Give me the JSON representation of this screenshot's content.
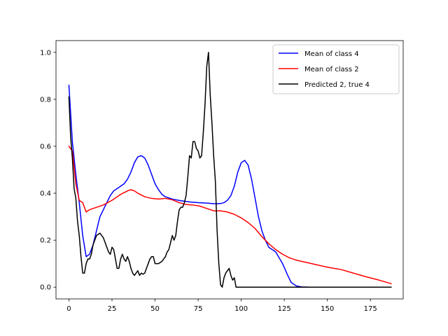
{
  "chart_data": {
    "type": "line",
    "title": "",
    "xlabel": "",
    "ylabel": "",
    "xlim": [
      -7.5,
      194
    ],
    "ylim": [
      -0.05,
      1.05
    ],
    "xticks": [
      0,
      25,
      50,
      75,
      100,
      125,
      150,
      175
    ],
    "yticks": [
      0.0,
      0.2,
      0.4,
      0.6,
      0.8,
      1.0
    ],
    "xtick_labels": [
      "0",
      "25",
      "50",
      "75",
      "100",
      "125",
      "150",
      "175"
    ],
    "ytick_labels": [
      "0.0",
      "0.2",
      "0.4",
      "0.6",
      "0.8",
      "1.0"
    ],
    "grid": false,
    "legend_position": "upper right",
    "series": [
      {
        "name": "Mean of class 4",
        "color": "#0000ff",
        "points": [
          [
            0,
            0.86
          ],
          [
            2,
            0.62
          ],
          [
            4,
            0.48
          ],
          [
            6,
            0.36
          ],
          [
            8,
            0.22
          ],
          [
            10,
            0.13
          ],
          [
            12,
            0.14
          ],
          [
            14,
            0.18
          ],
          [
            16,
            0.24
          ],
          [
            18,
            0.3
          ],
          [
            20,
            0.33
          ],
          [
            22,
            0.36
          ],
          [
            24,
            0.39
          ],
          [
            26,
            0.41
          ],
          [
            28,
            0.42
          ],
          [
            30,
            0.43
          ],
          [
            32,
            0.44
          ],
          [
            34,
            0.46
          ],
          [
            36,
            0.49
          ],
          [
            38,
            0.53
          ],
          [
            40,
            0.555
          ],
          [
            42,
            0.56
          ],
          [
            44,
            0.55
          ],
          [
            46,
            0.52
          ],
          [
            48,
            0.48
          ],
          [
            50,
            0.44
          ],
          [
            52,
            0.415
          ],
          [
            54,
            0.395
          ],
          [
            56,
            0.385
          ],
          [
            58,
            0.38
          ],
          [
            60,
            0.375
          ],
          [
            65,
            0.368
          ],
          [
            70,
            0.363
          ],
          [
            75,
            0.36
          ],
          [
            80,
            0.358
          ],
          [
            85,
            0.355
          ],
          [
            88,
            0.356
          ],
          [
            90,
            0.36
          ],
          [
            92,
            0.37
          ],
          [
            94,
            0.39
          ],
          [
            96,
            0.43
          ],
          [
            98,
            0.49
          ],
          [
            100,
            0.53
          ],
          [
            102,
            0.54
          ],
          [
            104,
            0.52
          ],
          [
            106,
            0.46
          ],
          [
            108,
            0.38
          ],
          [
            110,
            0.3
          ],
          [
            112,
            0.24
          ],
          [
            114,
            0.2
          ],
          [
            116,
            0.17
          ],
          [
            120,
            0.15
          ],
          [
            124,
            0.1
          ],
          [
            127,
            0.05
          ],
          [
            129,
            0.02
          ],
          [
            132,
            0.005
          ],
          [
            135,
            0.001
          ],
          [
            140,
            0.0
          ],
          [
            187,
            0.0
          ]
        ]
      },
      {
        "name": "Mean of class 2",
        "color": "#ff0000",
        "points": [
          [
            0,
            0.6
          ],
          [
            2,
            0.58
          ],
          [
            4,
            0.44
          ],
          [
            6,
            0.37
          ],
          [
            8,
            0.36
          ],
          [
            10,
            0.32
          ],
          [
            12,
            0.33
          ],
          [
            14,
            0.335
          ],
          [
            16,
            0.34
          ],
          [
            20,
            0.35
          ],
          [
            25,
            0.37
          ],
          [
            30,
            0.395
          ],
          [
            34,
            0.41
          ],
          [
            36,
            0.415
          ],
          [
            38,
            0.41
          ],
          [
            40,
            0.4
          ],
          [
            44,
            0.385
          ],
          [
            48,
            0.378
          ],
          [
            52,
            0.375
          ],
          [
            56,
            0.378
          ],
          [
            60,
            0.372
          ],
          [
            64,
            0.36
          ],
          [
            68,
            0.352
          ],
          [
            72,
            0.35
          ],
          [
            76,
            0.345
          ],
          [
            80,
            0.335
          ],
          [
            84,
            0.325
          ],
          [
            88,
            0.325
          ],
          [
            92,
            0.32
          ],
          [
            96,
            0.31
          ],
          [
            100,
            0.295
          ],
          [
            104,
            0.275
          ],
          [
            108,
            0.25
          ],
          [
            112,
            0.215
          ],
          [
            116,
            0.185
          ],
          [
            120,
            0.16
          ],
          [
            124,
            0.14
          ],
          [
            128,
            0.125
          ],
          [
            132,
            0.115
          ],
          [
            138,
            0.105
          ],
          [
            144,
            0.095
          ],
          [
            150,
            0.085
          ],
          [
            158,
            0.075
          ],
          [
            165,
            0.06
          ],
          [
            172,
            0.045
          ],
          [
            180,
            0.03
          ],
          [
            187,
            0.015
          ]
        ]
      },
      {
        "name": "Predicted 2, true 4",
        "color": "#000000",
        "points": [
          [
            0,
            0.81
          ],
          [
            1,
            0.64
          ],
          [
            2,
            0.55
          ],
          [
            3,
            0.42
          ],
          [
            4,
            0.38
          ],
          [
            5,
            0.28
          ],
          [
            6,
            0.22
          ],
          [
            7,
            0.13
          ],
          [
            8,
            0.06
          ],
          [
            9,
            0.06
          ],
          [
            10,
            0.1
          ],
          [
            11,
            0.12
          ],
          [
            12,
            0.12
          ],
          [
            13,
            0.14
          ],
          [
            14,
            0.18
          ],
          [
            15,
            0.2
          ],
          [
            16,
            0.22
          ],
          [
            17,
            0.225
          ],
          [
            18,
            0.23
          ],
          [
            19,
            0.22
          ],
          [
            20,
            0.21
          ],
          [
            21,
            0.19
          ],
          [
            22,
            0.17
          ],
          [
            23,
            0.15
          ],
          [
            24,
            0.14
          ],
          [
            25,
            0.17
          ],
          [
            26,
            0.16
          ],
          [
            27,
            0.12
          ],
          [
            28,
            0.08
          ],
          [
            29,
            0.08
          ],
          [
            30,
            0.12
          ],
          [
            31,
            0.14
          ],
          [
            32,
            0.12
          ],
          [
            33,
            0.11
          ],
          [
            34,
            0.13
          ],
          [
            35,
            0.11
          ],
          [
            36,
            0.08
          ],
          [
            37,
            0.06
          ],
          [
            38,
            0.05
          ],
          [
            39,
            0.06
          ],
          [
            40,
            0.07
          ],
          [
            41,
            0.05
          ],
          [
            42,
            0.06
          ],
          [
            43,
            0.055
          ],
          [
            44,
            0.06
          ],
          [
            45,
            0.08
          ],
          [
            46,
            0.1
          ],
          [
            47,
            0.12
          ],
          [
            48,
            0.13
          ],
          [
            49,
            0.13
          ],
          [
            50,
            0.1
          ],
          [
            52,
            0.1
          ],
          [
            54,
            0.11
          ],
          [
            56,
            0.13
          ],
          [
            57,
            0.15
          ],
          [
            58,
            0.16
          ],
          [
            59,
            0.19
          ],
          [
            60,
            0.22
          ],
          [
            61,
            0.2
          ],
          [
            62,
            0.22
          ],
          [
            63,
            0.28
          ],
          [
            64,
            0.33
          ],
          [
            65,
            0.34
          ],
          [
            66,
            0.34
          ],
          [
            67,
            0.36
          ],
          [
            68,
            0.39
          ],
          [
            69,
            0.47
          ],
          [
            70,
            0.56
          ],
          [
            71,
            0.55
          ],
          [
            72,
            0.62
          ],
          [
            73,
            0.62
          ],
          [
            74,
            0.59
          ],
          [
            75,
            0.58
          ],
          [
            76,
            0.55
          ],
          [
            77,
            0.56
          ],
          [
            78,
            0.66
          ],
          [
            79,
            0.78
          ],
          [
            80,
            0.94
          ],
          [
            81,
            1.0
          ],
          [
            82,
            0.82
          ],
          [
            83,
            0.7
          ],
          [
            84,
            0.56
          ],
          [
            85,
            0.45
          ],
          [
            86,
            0.24
          ],
          [
            87,
            0.1
          ],
          [
            88,
            0.01
          ],
          [
            89,
            0.0
          ],
          [
            90,
            0.04
          ],
          [
            91,
            0.06
          ],
          [
            92,
            0.07
          ],
          [
            93,
            0.08
          ],
          [
            94,
            0.05
          ],
          [
            95,
            0.03
          ],
          [
            96,
            0.04
          ],
          [
            97,
            0.0
          ],
          [
            100,
            0.0
          ],
          [
            187,
            0.0
          ]
        ]
      }
    ]
  }
}
